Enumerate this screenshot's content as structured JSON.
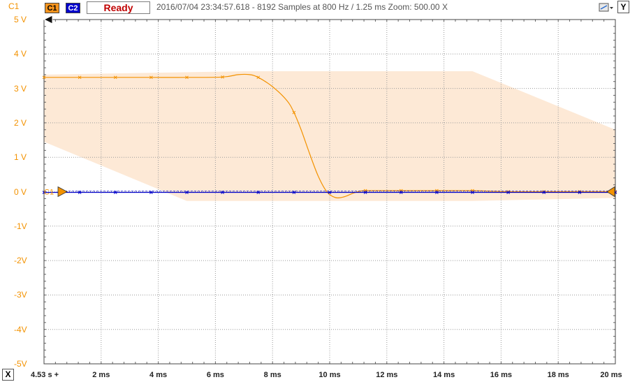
{
  "header": {
    "corner_channel": "C1",
    "channel1_label": "C1",
    "channel2_label": "C2",
    "status": "Ready",
    "capture_info": "2016/07/04 23:34:57.618 - 8192 Samples at 800 Hz / 1.25 ms Zoom: 500.00 X",
    "y_button": "Y",
    "x_button": "X"
  },
  "colors": {
    "channel1": "#f39200",
    "channel2": "#0000cc",
    "envelope": "#fde9d6",
    "grid": "#9a9a9a",
    "status_text": "#c00000"
  },
  "icons": {
    "toolbar": "measure-tool-icon",
    "trigger": "trigger-arrow-icon"
  },
  "chart_data": {
    "type": "line",
    "title": "",
    "xlabel": "",
    "ylabel": "",
    "y_tick_labels": [
      "5 V",
      "4 V",
      "3 V",
      "2 V",
      "1 V",
      "0 V",
      "-1V",
      "-2V",
      "-3V",
      "-4V",
      "-5V"
    ],
    "x_tick_labels": [
      "4.53 s +",
      "2 ms",
      "4 ms",
      "6 ms",
      "8 ms",
      "10 ms",
      "12 ms",
      "14 ms",
      "16 ms",
      "18 ms",
      "20 ms"
    ],
    "xlim": [
      0,
      20
    ],
    "ylim": [
      -5,
      5
    ],
    "grid": true,
    "channel_marker_label": "C1",
    "series": [
      {
        "name": "C1",
        "x": [
          0,
          1.25,
          2.5,
          3.75,
          5.0,
          6.25,
          6.8,
          7.2,
          7.5,
          8.0,
          8.5,
          8.75,
          9.0,
          9.3,
          9.6,
          9.9,
          10.2,
          10.5,
          10.8,
          11.0,
          11.25,
          12.5,
          13.75,
          15.0,
          16.25,
          17.5,
          18.75,
          20.0
        ],
        "values": [
          3.32,
          3.32,
          3.32,
          3.32,
          3.32,
          3.33,
          3.4,
          3.4,
          3.32,
          3.05,
          2.65,
          2.3,
          1.8,
          1.1,
          0.45,
          0.0,
          -0.17,
          -0.15,
          -0.05,
          0.0,
          0.03,
          0.03,
          0.03,
          0.03,
          0.0,
          0.0,
          0.0,
          0.0
        ]
      },
      {
        "name": "C2",
        "x": [
          0,
          1.25,
          2.5,
          3.75,
          5.0,
          6.25,
          7.5,
          8.75,
          10.0,
          11.25,
          12.5,
          13.75,
          15.0,
          16.25,
          17.5,
          18.75,
          20.0
        ],
        "values": [
          -0.02,
          -0.02,
          -0.02,
          -0.02,
          -0.02,
          -0.02,
          -0.02,
          -0.02,
          -0.02,
          -0.02,
          -0.02,
          -0.02,
          -0.02,
          -0.02,
          -0.02,
          -0.02,
          -0.02
        ]
      }
    ],
    "envelope": {
      "name": "C1 range",
      "upper": {
        "x": [
          0,
          7.0,
          15.0,
          20.0
        ],
        "values": [
          3.4,
          3.5,
          3.5,
          1.8
        ]
      },
      "lower": {
        "x": [
          0,
          5.0,
          15.0,
          20.0
        ],
        "values": [
          1.45,
          -0.27,
          -0.27,
          -0.18
        ]
      }
    }
  }
}
